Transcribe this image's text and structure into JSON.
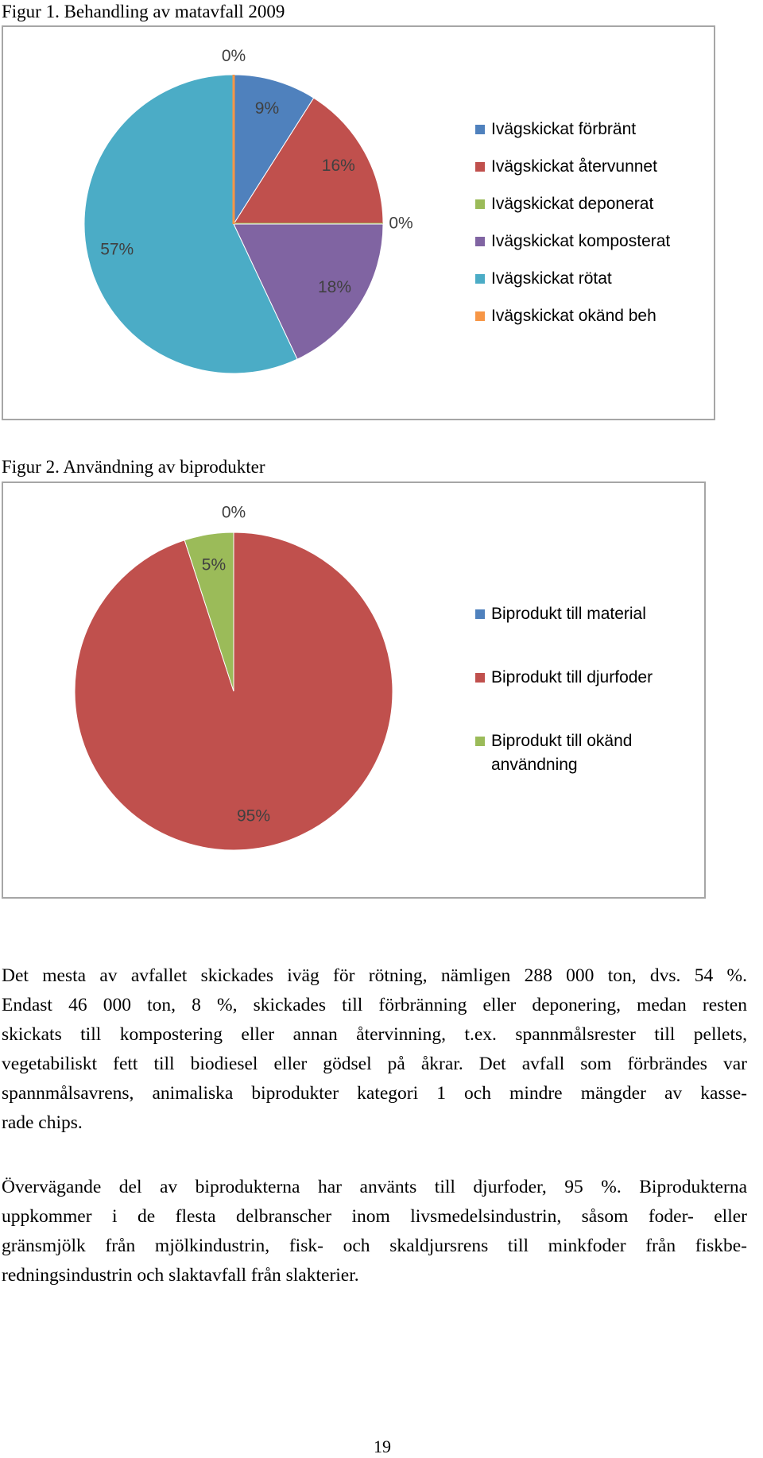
{
  "chart_data": [
    {
      "type": "pie",
      "title": "Figur 1. Behandling av matavfall 2009",
      "categories": [
        "Ivägskickat förbränt",
        "Ivägskickat återvunnet",
        "Ivägskickat deponerat",
        "Ivägskickat komposterat",
        "Ivägskickat rötat",
        "Ivägskickat okänd beh"
      ],
      "values": [
        9,
        16,
        0,
        18,
        57,
        0
      ],
      "value_labels": [
        "9%",
        "16%",
        "0%",
        "18%",
        "57%",
        "0%"
      ],
      "colors": [
        "#4f81bd",
        "#c0504d",
        "#9bbb59",
        "#8064a2",
        "#4bacc6",
        "#f79646"
      ]
    },
    {
      "type": "pie",
      "title": "Figur 2. Användning av biprodukter",
      "categories": [
        "Biprodukt till material",
        "Biprodukt till djurfoder",
        "Biprodukt till okänd användning"
      ],
      "values": [
        0,
        95,
        5
      ],
      "value_labels": [
        "0%",
        "95%",
        "5%"
      ],
      "colors": [
        "#4f81bd",
        "#c0504d",
        "#9bbb59"
      ]
    }
  ],
  "body": {
    "paragraphs": [
      [
        "Det mesta av avfallet skickades iväg för rötning, nämligen 288 000 ton, dvs. 54 %.",
        "Endast 46 000 ton, 8 %, skickades till förbränning eller deponering, medan resten",
        "skickats till kompostering eller annan återvinning, t.ex. spannmålsrester till pellets,",
        "vegetabiliskt fett till biodiesel eller gödsel på åkrar. Det avfall som förbrändes var",
        "spannmålsavrens, animaliska biprodukter kategori 1 och mindre mängder av kasse-",
        "rade chips."
      ],
      [
        "Övervägande del av biprodukterna har använts till djurfoder, 95 %. Biprodukterna",
        "uppkommer i de flesta delbranscher inom livsmedelsindustrin, såsom foder- eller",
        "gränsmjölk från mjölkindustrin, fisk- och skaldjursrens till minkfoder från fiskbe-",
        "redningsindustrin och slaktavfall från slakterier."
      ]
    ]
  },
  "page_number": "19"
}
